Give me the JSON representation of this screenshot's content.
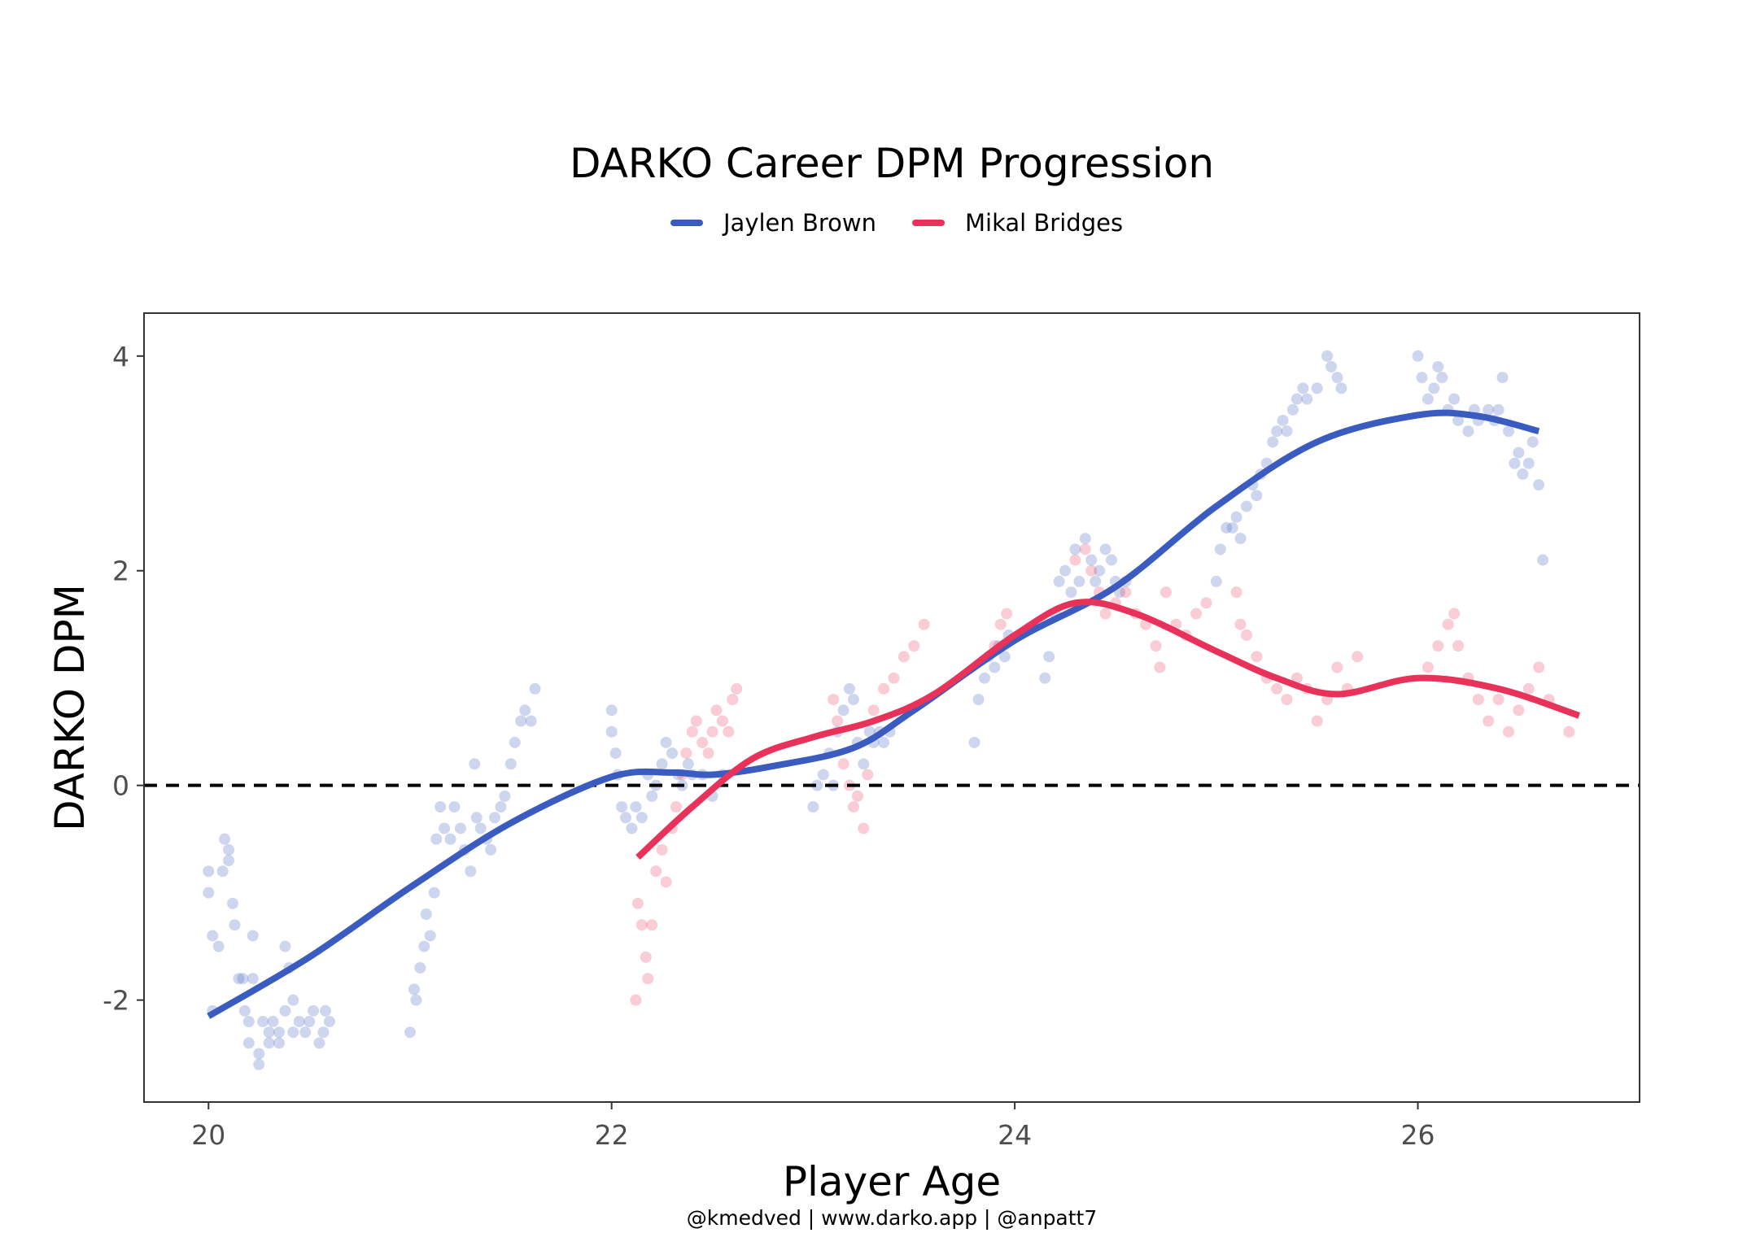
{
  "chart_data": {
    "type": "scatter",
    "title": "DARKO Career DPM Progression",
    "xlabel": "Player Age",
    "ylabel": "DARKO DPM",
    "caption": "@kmedved | www.darko.app | @anpatt7",
    "xlim": [
      19.68,
      27.1
    ],
    "ylim": [
      -2.95,
      4.4
    ],
    "xticks": [
      20,
      22,
      24,
      26
    ],
    "yticks": [
      4,
      2,
      0,
      -2
    ],
    "xtick_labels": [
      "20",
      "22",
      "24",
      "26"
    ],
    "ytick_labels": [
      "4",
      "2",
      "0",
      "-2"
    ],
    "reference_line": {
      "y": 0,
      "style": "dashed"
    },
    "legend_position": "top",
    "grid": false,
    "series": [
      {
        "name": "Jaylen Brown",
        "color": "#3a5bbf",
        "points": [
          [
            20.0,
            -0.8
          ],
          [
            20.0,
            -1.0
          ],
          [
            20.02,
            -1.4
          ],
          [
            20.02,
            -2.1
          ],
          [
            20.05,
            -1.5
          ],
          [
            20.07,
            -0.8
          ],
          [
            20.08,
            -0.5
          ],
          [
            20.1,
            -0.6
          ],
          [
            20.1,
            -0.7
          ],
          [
            20.12,
            -1.1
          ],
          [
            20.13,
            -1.3
          ],
          [
            20.15,
            -1.8
          ],
          [
            20.17,
            -1.8
          ],
          [
            20.18,
            -2.1
          ],
          [
            20.2,
            -2.2
          ],
          [
            20.2,
            -2.4
          ],
          [
            20.22,
            -1.8
          ],
          [
            20.22,
            -1.4
          ],
          [
            20.25,
            -2.5
          ],
          [
            20.25,
            -2.6
          ],
          [
            20.27,
            -2.2
          ],
          [
            20.3,
            -2.3
          ],
          [
            20.3,
            -2.4
          ],
          [
            20.32,
            -2.2
          ],
          [
            20.35,
            -2.3
          ],
          [
            20.35,
            -2.4
          ],
          [
            20.38,
            -2.1
          ],
          [
            20.38,
            -1.5
          ],
          [
            20.4,
            -1.7
          ],
          [
            20.42,
            -2.0
          ],
          [
            20.42,
            -2.3
          ],
          [
            20.45,
            -2.2
          ],
          [
            20.48,
            -2.3
          ],
          [
            20.5,
            -2.2
          ],
          [
            20.52,
            -2.1
          ],
          [
            20.55,
            -2.4
          ],
          [
            20.57,
            -2.3
          ],
          [
            20.58,
            -2.1
          ],
          [
            20.6,
            -2.2
          ],
          [
            21.0,
            -2.3
          ],
          [
            21.02,
            -1.9
          ],
          [
            21.03,
            -2.0
          ],
          [
            21.05,
            -1.7
          ],
          [
            21.07,
            -1.5
          ],
          [
            21.08,
            -1.2
          ],
          [
            21.1,
            -1.4
          ],
          [
            21.12,
            -1.0
          ],
          [
            21.13,
            -0.5
          ],
          [
            21.15,
            -0.2
          ],
          [
            21.17,
            -0.4
          ],
          [
            21.2,
            -0.5
          ],
          [
            21.22,
            -0.2
          ],
          [
            21.25,
            -0.4
          ],
          [
            21.27,
            -0.6
          ],
          [
            21.3,
            -0.8
          ],
          [
            21.32,
            0.2
          ],
          [
            21.33,
            -0.3
          ],
          [
            21.35,
            -0.4
          ],
          [
            21.38,
            -0.5
          ],
          [
            21.4,
            -0.6
          ],
          [
            21.42,
            -0.3
          ],
          [
            21.45,
            -0.2
          ],
          [
            21.47,
            -0.1
          ],
          [
            21.5,
            0.2
          ],
          [
            21.52,
            0.4
          ],
          [
            21.55,
            0.6
          ],
          [
            21.57,
            0.7
          ],
          [
            21.6,
            0.6
          ],
          [
            21.62,
            0.9
          ],
          [
            22.0,
            0.7
          ],
          [
            22.0,
            0.5
          ],
          [
            22.02,
            0.3
          ],
          [
            22.03,
            0.1
          ],
          [
            22.05,
            -0.2
          ],
          [
            22.07,
            -0.3
          ],
          [
            22.1,
            -0.4
          ],
          [
            22.12,
            -0.2
          ],
          [
            22.15,
            -0.3
          ],
          [
            22.18,
            0.1
          ],
          [
            22.2,
            -0.1
          ],
          [
            22.22,
            0.0
          ],
          [
            22.25,
            0.2
          ],
          [
            22.27,
            0.4
          ],
          [
            22.3,
            0.3
          ],
          [
            22.33,
            0.1
          ],
          [
            22.35,
            0.0
          ],
          [
            22.38,
            0.2
          ],
          [
            22.4,
            0.1
          ],
          [
            22.45,
            0.1
          ],
          [
            22.5,
            -0.1
          ],
          [
            22.55,
            0.1
          ],
          [
            23.0,
            -0.2
          ],
          [
            23.02,
            0.0
          ],
          [
            23.05,
            0.1
          ],
          [
            23.08,
            0.3
          ],
          [
            23.1,
            0.0
          ],
          [
            23.12,
            0.5
          ],
          [
            23.15,
            0.7
          ],
          [
            23.18,
            0.9
          ],
          [
            23.2,
            0.8
          ],
          [
            23.22,
            0.4
          ],
          [
            23.25,
            0.2
          ],
          [
            23.28,
            0.5
          ],
          [
            23.3,
            0.4
          ],
          [
            23.33,
            0.5
          ],
          [
            23.35,
            0.4
          ],
          [
            23.38,
            0.5
          ],
          [
            23.8,
            0.4
          ],
          [
            23.82,
            0.8
          ],
          [
            23.85,
            1.0
          ],
          [
            23.87,
            1.2
          ],
          [
            23.9,
            1.1
          ],
          [
            23.92,
            1.3
          ],
          [
            23.95,
            1.2
          ],
          [
            23.97,
            1.4
          ],
          [
            24.15,
            1.0
          ],
          [
            24.17,
            1.2
          ],
          [
            24.2,
            1.6
          ],
          [
            24.22,
            1.9
          ],
          [
            24.25,
            2.0
          ],
          [
            24.28,
            1.8
          ],
          [
            24.3,
            2.2
          ],
          [
            24.32,
            1.9
          ],
          [
            24.35,
            2.3
          ],
          [
            24.38,
            2.1
          ],
          [
            24.4,
            1.9
          ],
          [
            24.42,
            2.0
          ],
          [
            24.45,
            2.2
          ],
          [
            24.48,
            2.1
          ],
          [
            24.5,
            1.9
          ],
          [
            24.52,
            1.8
          ],
          [
            24.55,
            1.9
          ],
          [
            25.0,
            1.9
          ],
          [
            25.02,
            2.2
          ],
          [
            25.05,
            2.4
          ],
          [
            25.08,
            2.4
          ],
          [
            25.1,
            2.5
          ],
          [
            25.12,
            2.3
          ],
          [
            25.15,
            2.6
          ],
          [
            25.18,
            2.8
          ],
          [
            25.2,
            2.7
          ],
          [
            25.22,
            2.9
          ],
          [
            25.25,
            3.0
          ],
          [
            25.28,
            3.2
          ],
          [
            25.3,
            3.3
          ],
          [
            25.33,
            3.4
          ],
          [
            25.35,
            3.3
          ],
          [
            25.38,
            3.5
          ],
          [
            25.4,
            3.6
          ],
          [
            25.43,
            3.7
          ],
          [
            25.45,
            3.6
          ],
          [
            25.5,
            3.7
          ],
          [
            25.55,
            4.0
          ],
          [
            25.57,
            3.9
          ],
          [
            25.6,
            3.8
          ],
          [
            25.62,
            3.7
          ],
          [
            26.0,
            4.0
          ],
          [
            26.02,
            3.8
          ],
          [
            26.05,
            3.6
          ],
          [
            26.08,
            3.7
          ],
          [
            26.1,
            3.9
          ],
          [
            26.12,
            3.8
          ],
          [
            26.15,
            3.5
          ],
          [
            26.18,
            3.6
          ],
          [
            26.2,
            3.4
          ],
          [
            26.25,
            3.3
          ],
          [
            26.28,
            3.5
          ],
          [
            26.3,
            3.4
          ],
          [
            26.35,
            3.5
          ],
          [
            26.38,
            3.4
          ],
          [
            26.4,
            3.5
          ],
          [
            26.42,
            3.8
          ],
          [
            26.45,
            3.3
          ],
          [
            26.48,
            3.0
          ],
          [
            26.5,
            3.1
          ],
          [
            26.52,
            2.9
          ],
          [
            26.55,
            3.0
          ],
          [
            26.57,
            3.2
          ],
          [
            26.6,
            2.8
          ],
          [
            26.62,
            2.1
          ]
        ],
        "smooth": [
          [
            20,
            -2.15
          ],
          [
            20.5,
            -1.6
          ],
          [
            21,
            -0.95
          ],
          [
            21.5,
            -0.35
          ],
          [
            22,
            0.08
          ],
          [
            22.3,
            0.12
          ],
          [
            22.5,
            0.1
          ],
          [
            22.8,
            0.18
          ],
          [
            23.2,
            0.35
          ],
          [
            23.5,
            0.7
          ],
          [
            24,
            1.35
          ],
          [
            24.5,
            1.85
          ],
          [
            25,
            2.6
          ],
          [
            25.5,
            3.2
          ],
          [
            26,
            3.45
          ],
          [
            26.3,
            3.44
          ],
          [
            26.6,
            3.3
          ]
        ]
      },
      {
        "name": "Mikal Bridges",
        "color": "#e8325a",
        "points": [
          [
            22.12,
            -2.0
          ],
          [
            22.13,
            -1.1
          ],
          [
            22.15,
            -1.3
          ],
          [
            22.17,
            -1.6
          ],
          [
            22.18,
            -1.8
          ],
          [
            22.2,
            -1.3
          ],
          [
            22.22,
            -0.8
          ],
          [
            22.25,
            -0.6
          ],
          [
            22.27,
            -0.9
          ],
          [
            22.3,
            -0.4
          ],
          [
            22.32,
            -0.2
          ],
          [
            22.35,
            0.1
          ],
          [
            22.37,
            0.3
          ],
          [
            22.4,
            0.5
          ],
          [
            22.42,
            0.6
          ],
          [
            22.45,
            0.4
          ],
          [
            22.48,
            0.3
          ],
          [
            22.5,
            0.5
          ],
          [
            22.52,
            0.7
          ],
          [
            22.55,
            0.6
          ],
          [
            22.58,
            0.5
          ],
          [
            22.6,
            0.8
          ],
          [
            22.62,
            0.9
          ],
          [
            23.1,
            0.8
          ],
          [
            23.12,
            0.6
          ],
          [
            23.15,
            0.2
          ],
          [
            23.18,
            0.0
          ],
          [
            23.2,
            -0.2
          ],
          [
            23.22,
            -0.1
          ],
          [
            23.25,
            -0.4
          ],
          [
            23.27,
            0.1
          ],
          [
            23.3,
            0.7
          ],
          [
            23.35,
            0.9
          ],
          [
            23.4,
            1.0
          ],
          [
            23.45,
            1.2
          ],
          [
            23.5,
            1.3
          ],
          [
            23.55,
            1.5
          ],
          [
            23.9,
            1.3
          ],
          [
            23.93,
            1.5
          ],
          [
            23.96,
            1.6
          ],
          [
            24.3,
            2.1
          ],
          [
            24.35,
            2.2
          ],
          [
            24.38,
            2.0
          ],
          [
            24.42,
            1.8
          ],
          [
            24.45,
            1.6
          ],
          [
            24.5,
            1.7
          ],
          [
            24.55,
            1.8
          ],
          [
            24.6,
            1.6
          ],
          [
            24.65,
            1.5
          ],
          [
            24.7,
            1.3
          ],
          [
            24.72,
            1.1
          ],
          [
            24.75,
            1.8
          ],
          [
            24.8,
            1.5
          ],
          [
            24.85,
            1.4
          ],
          [
            24.9,
            1.6
          ],
          [
            24.95,
            1.7
          ],
          [
            25.1,
            1.8
          ],
          [
            25.12,
            1.5
          ],
          [
            25.15,
            1.4
          ],
          [
            25.2,
            1.2
          ],
          [
            25.25,
            1.0
          ],
          [
            25.3,
            0.9
          ],
          [
            25.35,
            0.8
          ],
          [
            25.4,
            1.0
          ],
          [
            25.45,
            0.9
          ],
          [
            25.5,
            0.6
          ],
          [
            25.55,
            0.8
          ],
          [
            25.6,
            1.1
          ],
          [
            25.65,
            0.9
          ],
          [
            25.7,
            1.2
          ],
          [
            26.05,
            1.1
          ],
          [
            26.1,
            1.3
          ],
          [
            26.15,
            1.5
          ],
          [
            26.18,
            1.6
          ],
          [
            26.2,
            1.3
          ],
          [
            26.25,
            1.0
          ],
          [
            26.3,
            0.8
          ],
          [
            26.35,
            0.6
          ],
          [
            26.4,
            0.8
          ],
          [
            26.45,
            0.5
          ],
          [
            26.5,
            0.7
          ],
          [
            26.55,
            0.9
          ],
          [
            26.6,
            1.1
          ],
          [
            26.65,
            0.8
          ],
          [
            26.75,
            0.5
          ]
        ],
        "smooth": [
          [
            22.13,
            -0.67
          ],
          [
            22.4,
            -0.2
          ],
          [
            22.7,
            0.25
          ],
          [
            23,
            0.45
          ],
          [
            23.3,
            0.6
          ],
          [
            23.6,
            0.85
          ],
          [
            24,
            1.4
          ],
          [
            24.3,
            1.7
          ],
          [
            24.6,
            1.6
          ],
          [
            25,
            1.25
          ],
          [
            25.3,
            1.0
          ],
          [
            25.6,
            0.85
          ],
          [
            26,
            1.0
          ],
          [
            26.4,
            0.9
          ],
          [
            26.8,
            0.65
          ]
        ]
      }
    ]
  }
}
